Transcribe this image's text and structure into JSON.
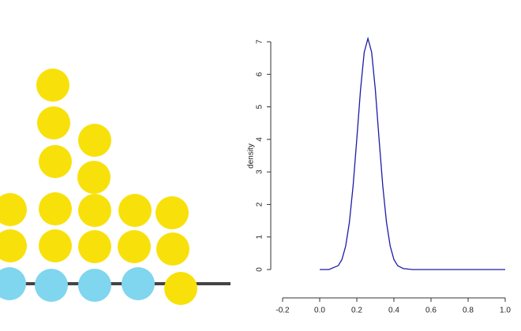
{
  "chart_data": {
    "type": "line",
    "y_label": "density",
    "x": [
      0.0,
      0.05,
      0.1,
      0.12,
      0.14,
      0.16,
      0.18,
      0.2,
      0.22,
      0.24,
      0.26,
      0.28,
      0.3,
      0.32,
      0.34,
      0.36,
      0.38,
      0.4,
      0.42,
      0.45,
      0.5,
      1.0
    ],
    "series": [
      {
        "color": "#1c1ca8",
        "values": [
          0,
          0,
          0.12,
          0.31,
          0.72,
          1.45,
          2.57,
          4.01,
          5.52,
          6.68,
          7.1,
          6.68,
          5.52,
          4.01,
          2.57,
          1.45,
          0.72,
          0.31,
          0.12,
          0.03,
          0,
          0
        ]
      }
    ],
    "xlim": [
      -0.2,
      1.0
    ],
    "xticks": [
      -0.2,
      {
        "value": 0,
        "label": "0.0"
      },
      0.2,
      0.4,
      0.6,
      0.8,
      {
        "value": 1,
        "label": "1.0"
      }
    ],
    "ylim": [
      0,
      7
    ],
    "yticks": [
      0,
      1,
      2,
      3,
      4,
      5,
      6,
      7
    ]
  }
}
